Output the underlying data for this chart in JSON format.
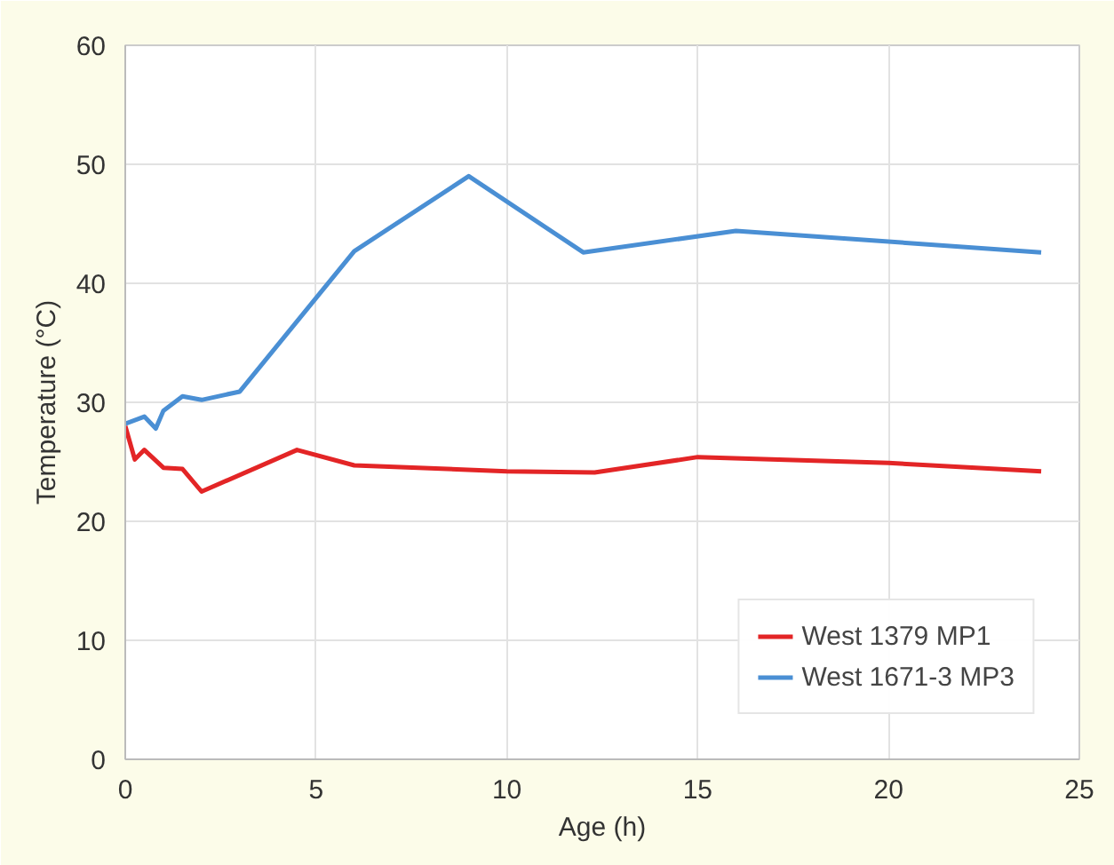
{
  "chart_data": {
    "type": "line",
    "xlabel": "Age (h)",
    "ylabel": "Temperature (°C)",
    "xlim": [
      0,
      25
    ],
    "ylim": [
      0,
      60
    ],
    "xticks": [
      0,
      5,
      10,
      15,
      20,
      25
    ],
    "yticks": [
      0,
      10,
      20,
      30,
      40,
      50,
      60
    ],
    "grid": true,
    "legend": "bottom right",
    "line_style": "solid",
    "series": [
      {
        "name": "West 1379 MP1",
        "color": "#e32526",
        "x": [
          0,
          0.25,
          0.5,
          1,
          1.5,
          2,
          4.5,
          6,
          10,
          12.3,
          15,
          20,
          24
        ],
        "values": [
          28,
          25.2,
          26,
          24.5,
          24.4,
          22.5,
          26,
          24.7,
          24.2,
          24.1,
          25.4,
          24.9,
          24.2
        ]
      },
      {
        "name": "West 1671-3 MP3",
        "color": "#4a8fd4",
        "x": [
          0,
          0.5,
          0.8,
          1,
          1.5,
          2,
          3,
          6,
          9,
          12,
          16,
          24
        ],
        "values": [
          28.2,
          28.8,
          27.8,
          29.3,
          30.5,
          30.2,
          30.9,
          42.7,
          49,
          42.6,
          44.4,
          42.6
        ]
      }
    ]
  }
}
